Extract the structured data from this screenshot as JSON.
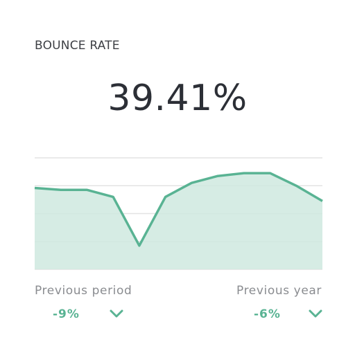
{
  "card": {
    "title": "BOUNCE RATE",
    "value": "39.41%"
  },
  "comparison": {
    "previous_period": {
      "label": "Previous period",
      "change": "-9%",
      "direction_icon": "chevron-down-icon"
    },
    "previous_year": {
      "label": "Previous year",
      "change": "-6%",
      "direction_icon": "chevron-down-icon"
    }
  },
  "colors": {
    "accent": "#59b393",
    "fill": "#cfe9df",
    "grid": "#e3e3e3",
    "title": "#3d3f44",
    "value": "#2c2f36",
    "muted": "#8a8c90"
  },
  "chart_data": {
    "type": "area",
    "title": "",
    "xlabel": "",
    "ylabel": "",
    "ylim": [
      0,
      4
    ],
    "grid": true,
    "legend": "none",
    "x": [
      0,
      1,
      2,
      3,
      4,
      5,
      6,
      7,
      8,
      9,
      10,
      11
    ],
    "series": [
      {
        "name": "",
        "values": [
          2.92,
          2.85,
          2.85,
          2.6,
          0.85,
          2.6,
          3.1,
          3.35,
          3.45,
          3.45,
          3.0,
          2.45
        ]
      }
    ]
  }
}
